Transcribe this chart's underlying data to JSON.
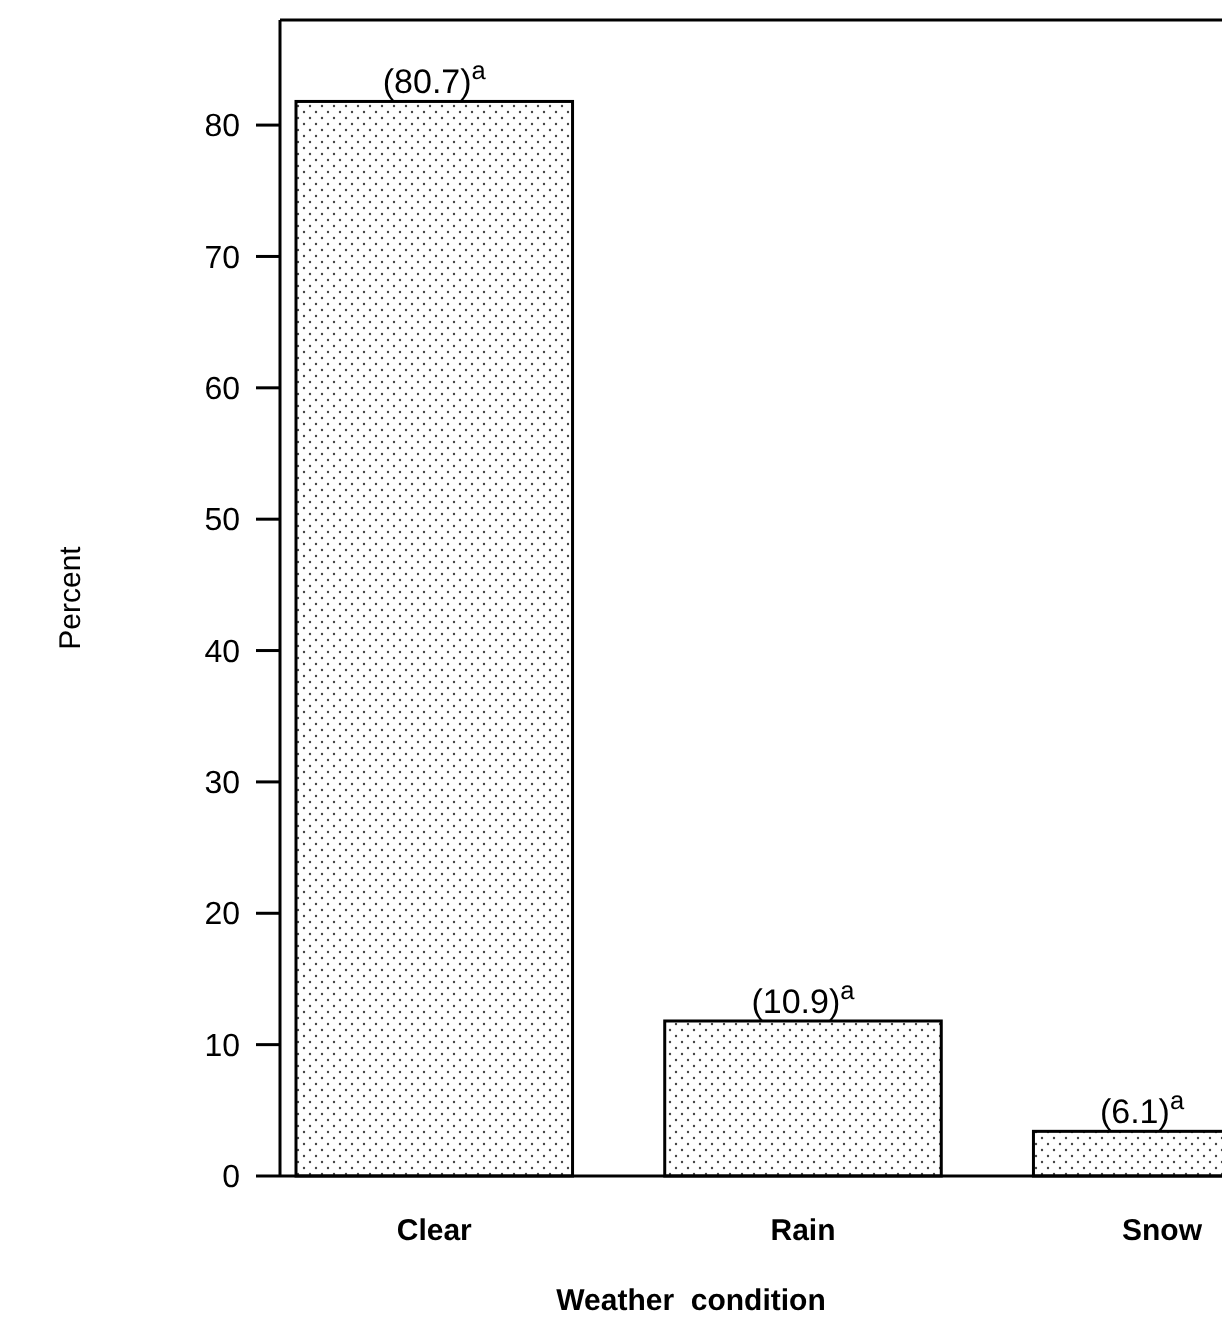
{
  "chart_data": {
    "type": "bar",
    "xlabel": "Weather  condition",
    "ylabel": "Percent",
    "categories": [
      "Clear",
      "Rain",
      "Snow"
    ],
    "values": [
      81.8,
      11.8,
      3.4
    ],
    "annotations": [
      {
        "text": "(80.7)$^{a}$",
        "x": "Clear",
        "y": 81.8
      },
      {
        "text": "(10.9)$^{a}$",
        "x": "Rain",
        "y": 11.8
      },
      {
        "text": "(6.1)$^{a}$",
        "x": "Snow",
        "y": 3.4
      }
    ],
    "ylim": [
      0,
      88
    ],
    "yticks": [
      0,
      10,
      20,
      30,
      40,
      50,
      60,
      70,
      80
    ],
    "grid": false
  }
}
